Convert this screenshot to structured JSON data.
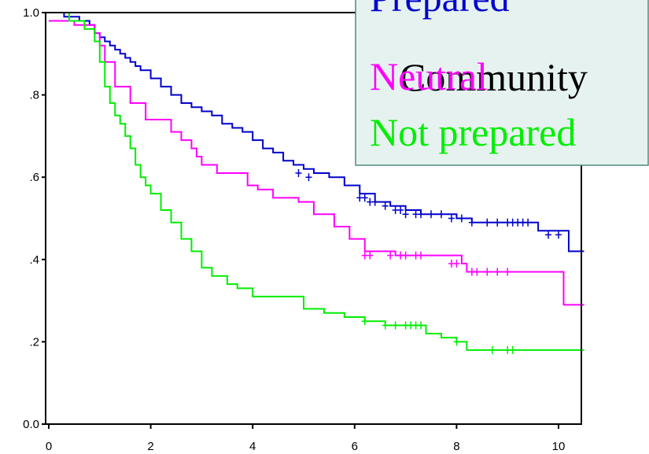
{
  "chart_data": {
    "type": "line",
    "step": true,
    "title": "",
    "xlabel": "",
    "ylabel": "",
    "xlim": [
      0,
      10.5
    ],
    "ylim": [
      0.0,
      1.0
    ],
    "x_ticks": [
      0,
      2,
      4,
      6,
      8,
      10
    ],
    "x_tick_labels": [
      "0",
      "2",
      "4",
      "6",
      "8",
      "10"
    ],
    "y_ticks": [
      0.0,
      0.2,
      0.4,
      0.6,
      0.8,
      1.0
    ],
    "y_tick_labels": [
      "0.0",
      ".2",
      ".4",
      ".6",
      ".8",
      "1.0"
    ],
    "grid": false,
    "legend": {
      "title": "Community",
      "placement": "top-right",
      "background": "#e6f2f0",
      "border_color": "#4d8c7a"
    },
    "series": [
      {
        "name": "Prepared",
        "color": "#0000cc",
        "x": [
          0,
          0.3,
          0.6,
          0.8,
          0.9,
          1.0,
          1.1,
          1.2,
          1.3,
          1.4,
          1.5,
          1.6,
          1.7,
          1.8,
          2.0,
          2.2,
          2.4,
          2.6,
          2.8,
          3.0,
          3.2,
          3.4,
          3.6,
          3.8,
          4.0,
          4.2,
          4.4,
          4.6,
          4.8,
          5.0,
          5.2,
          5.5,
          5.8,
          6.1,
          6.4,
          6.7,
          7.0,
          7.3,
          7.6,
          8.0,
          8.3,
          8.6,
          9.0,
          9.3,
          9.6,
          10.2,
          10.5
        ],
        "y": [
          1.0,
          0.99,
          0.98,
          0.97,
          0.95,
          0.94,
          0.93,
          0.92,
          0.91,
          0.9,
          0.89,
          0.88,
          0.87,
          0.86,
          0.84,
          0.82,
          0.8,
          0.78,
          0.77,
          0.76,
          0.75,
          0.73,
          0.72,
          0.71,
          0.69,
          0.67,
          0.66,
          0.64,
          0.63,
          0.62,
          0.61,
          0.6,
          0.58,
          0.56,
          0.54,
          0.53,
          0.52,
          0.51,
          0.51,
          0.5,
          0.49,
          0.49,
          0.49,
          0.49,
          0.47,
          0.42,
          0.42
        ]
      },
      {
        "name": "Neutral",
        "color": "#ff00ff",
        "x": [
          0,
          0.5,
          0.9,
          1.0,
          1.1,
          1.3,
          1.6,
          1.9,
          2.0,
          2.4,
          2.6,
          2.8,
          2.9,
          3.0,
          3.3,
          3.9,
          4.1,
          4.4,
          4.6,
          4.9,
          5.2,
          5.6,
          5.9,
          6.2,
          6.8,
          7.3,
          8.1,
          8.2,
          10.1,
          10.5
        ],
        "y": [
          0.98,
          0.97,
          0.95,
          0.92,
          0.88,
          0.82,
          0.78,
          0.74,
          0.74,
          0.71,
          0.69,
          0.67,
          0.65,
          0.63,
          0.61,
          0.58,
          0.57,
          0.55,
          0.55,
          0.54,
          0.51,
          0.48,
          0.45,
          0.42,
          0.41,
          0.41,
          0.39,
          0.37,
          0.29,
          0.29
        ]
      },
      {
        "name": "Not prepared",
        "color": "#00ee00",
        "x": [
          0,
          0.4,
          0.7,
          0.9,
          1.0,
          1.1,
          1.2,
          1.3,
          1.4,
          1.5,
          1.6,
          1.7,
          1.8,
          1.9,
          2.0,
          2.2,
          2.4,
          2.6,
          2.8,
          3.0,
          3.2,
          3.5,
          3.7,
          4.0,
          4.4,
          5.0,
          5.4,
          5.8,
          6.2,
          6.6,
          7.1,
          7.4,
          7.7,
          8.0,
          8.2,
          9.0,
          10.5
        ],
        "y": [
          1.0,
          0.98,
          0.96,
          0.93,
          0.88,
          0.82,
          0.78,
          0.75,
          0.73,
          0.7,
          0.67,
          0.63,
          0.6,
          0.58,
          0.56,
          0.52,
          0.49,
          0.45,
          0.42,
          0.38,
          0.36,
          0.34,
          0.33,
          0.31,
          0.31,
          0.28,
          0.27,
          0.26,
          0.25,
          0.24,
          0.24,
          0.22,
          0.21,
          0.2,
          0.18,
          0.18,
          0.18
        ]
      }
    ],
    "censor_marks": [
      {
        "series": "Prepared",
        "x": [
          4.9,
          5.1,
          6.1,
          6.2,
          6.3,
          6.4,
          6.6,
          6.8,
          6.9,
          7.0,
          7.2,
          7.3,
          7.5,
          7.7,
          7.9,
          8.1,
          8.3,
          8.6,
          8.8,
          9.0,
          9.1,
          9.2,
          9.3,
          9.4,
          9.8,
          10.0
        ],
        "y": [
          0.61,
          0.6,
          0.55,
          0.55,
          0.54,
          0.54,
          0.53,
          0.52,
          0.52,
          0.51,
          0.51,
          0.51,
          0.51,
          0.51,
          0.5,
          0.5,
          0.49,
          0.49,
          0.49,
          0.49,
          0.49,
          0.49,
          0.49,
          0.49,
          0.46,
          0.46
        ]
      },
      {
        "series": "Neutral",
        "x": [
          6.2,
          6.3,
          6.7,
          6.9,
          7.0,
          7.2,
          7.3,
          7.9,
          8.0,
          8.3,
          8.4,
          8.6,
          8.8,
          9.0
        ],
        "y": [
          0.41,
          0.41,
          0.41,
          0.41,
          0.41,
          0.41,
          0.41,
          0.39,
          0.39,
          0.37,
          0.37,
          0.37,
          0.37,
          0.37
        ]
      },
      {
        "series": "Not prepared",
        "x": [
          6.2,
          6.6,
          6.8,
          7.0,
          7.1,
          7.2,
          7.3,
          8.0,
          8.7,
          9.0,
          9.1
        ],
        "y": [
          0.25,
          0.24,
          0.24,
          0.24,
          0.24,
          0.24,
          0.24,
          0.2,
          0.18,
          0.18,
          0.18
        ]
      }
    ]
  }
}
